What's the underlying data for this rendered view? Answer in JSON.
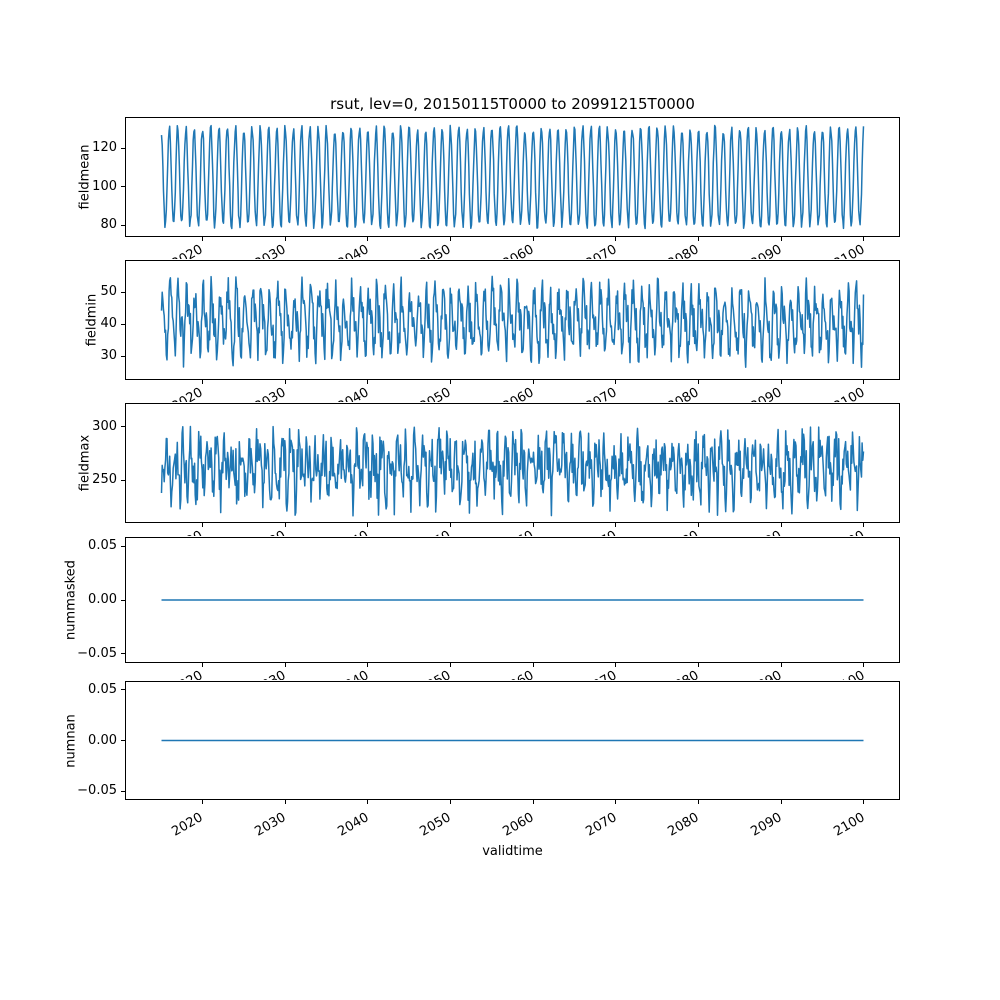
{
  "title": "rsut, lev=0, 20150115T0000 to 20991215T0000",
  "line_color": "#1f77b4",
  "grid": false,
  "x_axis": {
    "label": "validtime",
    "xlim": [
      2010.75,
      2104.25
    ],
    "tick_values": [
      2020,
      2030,
      2040,
      2050,
      2060,
      2070,
      2080,
      2090,
      2100
    ],
    "tick_labels": [
      "2020",
      "2030",
      "2040",
      "2050",
      "2060",
      "2070",
      "2080",
      "2090",
      "2100"
    ],
    "data_start": 2015.0417,
    "data_end": 2099.9583,
    "samples_per_year": 12,
    "n_points": 1020
  },
  "chart_data": [
    {
      "name": "fieldmean",
      "type": "line",
      "ylabel": "fieldmean",
      "ylim": [
        74.5,
        135.5
      ],
      "ytick_values": [
        80,
        100,
        120
      ],
      "ytick_labels": [
        "80",
        "100",
        "120"
      ],
      "approx_range": [
        78,
        132
      ],
      "signal": {
        "base": 105,
        "seasonal_amplitude": 25,
        "seasonal2_amplitude": 0,
        "noise_amplitude": 2.5,
        "phase": 0.25,
        "seed": 101
      }
    },
    {
      "name": "fieldmin",
      "type": "line",
      "ylabel": "fieldmin",
      "ylim": [
        22.8,
        59.8
      ],
      "ytick_values": [
        30,
        40,
        50
      ],
      "ytick_labels": [
        "30",
        "40",
        "50"
      ],
      "approx_range": [
        27,
        57
      ],
      "signal": {
        "base": 41,
        "seasonal_amplitude": 7.5,
        "seasonal2_amplitude": 3,
        "noise_amplitude": 5.5,
        "phase": 0.1,
        "seed": 202
      }
    },
    {
      "name": "fieldmax",
      "type": "line",
      "ylabel": "fieldmax",
      "ylim": [
        211,
        321
      ],
      "ytick_values": [
        250,
        300
      ],
      "ytick_labels": [
        "250",
        "300"
      ],
      "approx_range": [
        215,
        318
      ],
      "signal": {
        "base": 262,
        "seasonal_amplitude": 18,
        "seasonal2_amplitude": 8,
        "noise_amplitude": 22,
        "phase": 0.55,
        "seed": 303
      }
    },
    {
      "name": "nummasked",
      "type": "line",
      "ylabel": "nummasked",
      "ylim": [
        -0.0575,
        0.0575
      ],
      "ytick_values": [
        -0.05,
        0,
        0.05
      ],
      "ytick_labels": [
        "−0.05",
        "0.00",
        "0.05"
      ],
      "approx_range": [
        0,
        0
      ],
      "signal": {
        "base": 0,
        "seasonal_amplitude": 0,
        "seasonal2_amplitude": 0,
        "noise_amplitude": 0,
        "phase": 0,
        "seed": 1
      }
    },
    {
      "name": "numnan",
      "type": "line",
      "ylabel": "numnan",
      "ylim": [
        -0.0575,
        0.0575
      ],
      "ytick_values": [
        -0.05,
        0,
        0.05
      ],
      "ytick_labels": [
        "−0.05",
        "0.00",
        "0.05"
      ],
      "approx_range": [
        0,
        0
      ],
      "signal": {
        "base": 0,
        "seasonal_amplitude": 0,
        "seasonal2_amplitude": 0,
        "noise_amplitude": 0,
        "phase": 0,
        "seed": 1
      }
    }
  ]
}
